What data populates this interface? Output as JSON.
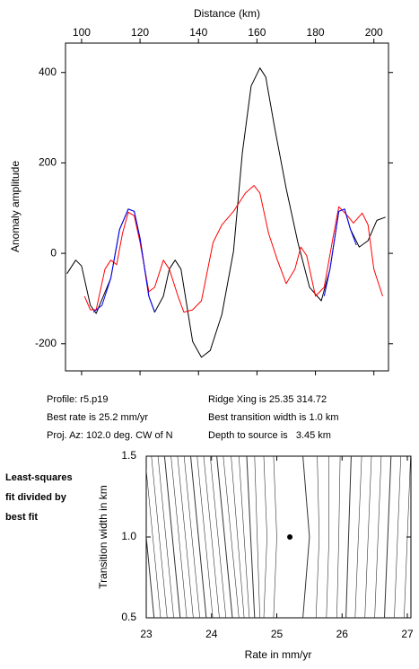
{
  "chart_data": [
    {
      "type": "line",
      "xlabel": "Distance (km)",
      "ylabel": "Anomaly amplitude",
      "xlim": [
        94.5,
        205
      ],
      "xticks": [
        100,
        120,
        140,
        160,
        180,
        200
      ],
      "ylim": [
        -260,
        465
      ],
      "yticks": [
        -200,
        0,
        200,
        400
      ],
      "series": [
        {
          "color": "#000000",
          "x": [
            95,
            98,
            100,
            103,
            105,
            110,
            113,
            116,
            118,
            120,
            123,
            125,
            128,
            130,
            132,
            134,
            136,
            138,
            141,
            144,
            148,
            152,
            155,
            158,
            161,
            163,
            166,
            170,
            174,
            178,
            182,
            185,
            188,
            190,
            192,
            195,
            198,
            201,
            204
          ],
          "values": [
            -45,
            -15,
            -28,
            -115,
            -133,
            -55,
            53,
            98,
            93,
            33,
            -95,
            -130,
            -95,
            -35,
            -15,
            -35,
            -115,
            -195,
            -230,
            -215,
            -135,
            5,
            222,
            370,
            410,
            390,
            280,
            143,
            24,
            -75,
            -105,
            -35,
            93,
            98,
            53,
            14,
            28,
            73,
            80
          ]
        },
        {
          "color": "#ff0000",
          "x": [
            101,
            103,
            105,
            108,
            110,
            112,
            114,
            116,
            118,
            120,
            123,
            125,
            128,
            130,
            133,
            135,
            138,
            141,
            145,
            148,
            152,
            156,
            159,
            161,
            164,
            167,
            170,
            173,
            175,
            177,
            180,
            183,
            186,
            188,
            191,
            193,
            196,
            198,
            200,
            203
          ],
          "values": [
            -95,
            -125,
            -125,
            -35,
            -15,
            -25,
            44,
            91,
            83,
            24,
            -85,
            -75,
            -15,
            -35,
            -95,
            -130,
            -125,
            -105,
            24,
            63,
            93,
            133,
            150,
            133,
            44,
            -15,
            -67,
            -35,
            14,
            -5,
            -95,
            -75,
            34,
            103,
            83,
            67,
            89,
            63,
            -35,
            -95
          ]
        },
        {
          "color": "#0000ff",
          "x": [
            104,
            107,
            110,
            113,
            116,
            118,
            120,
            123,
            125,
            150,
            183,
            185,
            188,
            190,
            192,
            194
          ],
          "values": [
            -130,
            -115,
            -55,
            53,
            98,
            93,
            33,
            -95,
            -130,
            null,
            -95,
            -35,
            93,
            98,
            53,
            18
          ]
        }
      ],
      "annotations": [
        "Profile: r5.p19",
        "Best rate is 25.2 mm/yr",
        "Proj. Az: 102.0 deg. CW of N",
        "Ridge Xing is 25.35 314.72",
        "Best transition width is 1.0 km",
        "Depth to source is   3.45 km"
      ]
    },
    {
      "type": "contour",
      "xlabel": "Rate in mm/yr",
      "ylabel": "Transition width in km",
      "note": [
        "Least-squares",
        "fit divided by",
        "best fit"
      ],
      "xlim": [
        23,
        27
      ],
      "xticks": [
        23,
        24,
        25,
        26,
        27
      ],
      "ylim": [
        0.5,
        1.5
      ],
      "yticks": [
        {
          "value": 0.5,
          "label": "0.5"
        },
        {
          "value": 1.0,
          "label": "1.0"
        },
        {
          "value": 1.5,
          "label": "1.5"
        }
      ],
      "contour_y": [
        0.5,
        1.0,
        1.5
      ],
      "contours": [
        [
          23.12,
          23.0,
          22.88
        ],
        [
          23.22,
          23.1,
          22.98
        ],
        [
          23.32,
          23.2,
          23.08
        ],
        [
          23.42,
          23.3,
          23.18
        ],
        [
          23.52,
          23.4,
          23.28
        ],
        [
          23.62,
          23.5,
          23.38
        ],
        [
          23.72,
          23.6,
          23.48
        ],
        [
          23.82,
          23.7,
          23.58
        ],
        [
          23.92,
          23.8,
          23.68
        ],
        [
          24.02,
          23.9,
          23.78
        ],
        [
          24.12,
          24.0,
          23.88
        ],
        [
          24.22,
          24.1,
          23.98
        ],
        [
          24.32,
          24.2,
          24.08
        ],
        [
          24.42,
          24.3,
          24.18
        ],
        [
          24.5,
          24.4,
          24.3
        ],
        [
          24.58,
          24.5,
          24.42
        ],
        [
          24.66,
          24.6,
          24.54
        ],
        [
          24.74,
          24.7,
          24.66
        ],
        [
          24.8,
          24.85,
          24.8
        ],
        [
          24.95,
          25.0,
          24.95
        ],
        [
          25.4,
          25.5,
          25.4
        ],
        [
          25.6,
          25.65,
          25.62
        ],
        [
          25.76,
          25.8,
          25.8
        ],
        [
          25.92,
          25.95,
          25.97
        ],
        [
          26.06,
          26.1,
          26.14
        ],
        [
          26.2,
          26.25,
          26.3
        ],
        [
          26.35,
          26.4,
          26.45
        ],
        [
          26.5,
          26.55,
          26.6
        ],
        [
          26.65,
          26.7,
          26.75
        ],
        [
          26.8,
          26.85,
          26.9
        ],
        [
          26.95,
          27.0,
          27.05
        ]
      ],
      "best": {
        "x": 25.2,
        "y": 1.0
      }
    }
  ]
}
